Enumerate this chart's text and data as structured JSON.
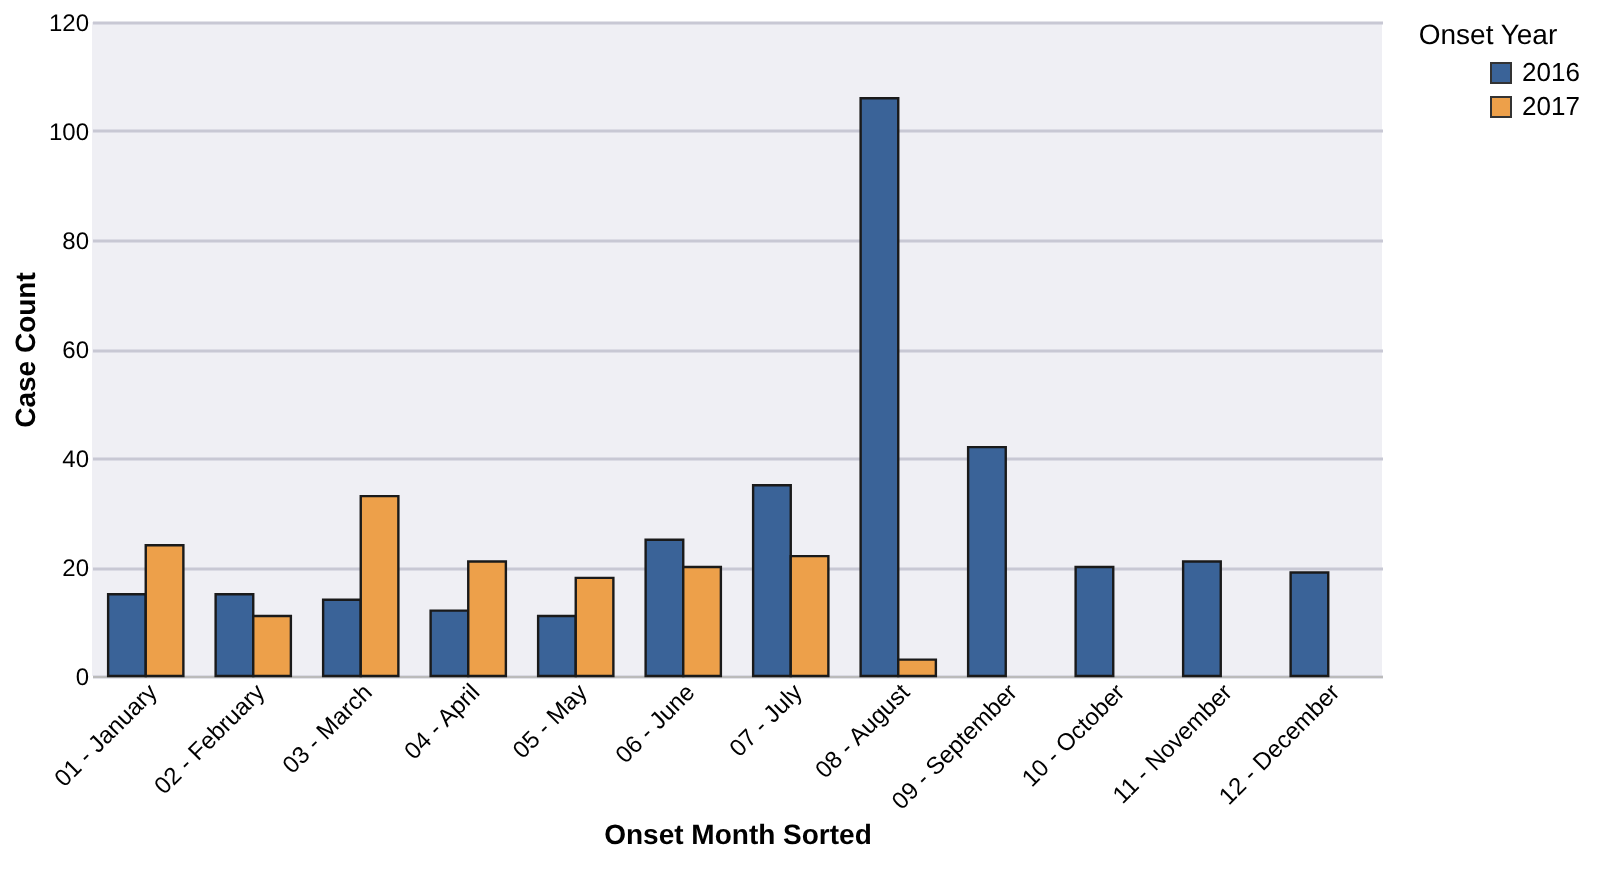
{
  "chart_data": {
    "type": "bar",
    "xlabel": "Onset Month Sorted",
    "ylabel": "Case Count",
    "legend_title": "Onset Year",
    "categories": [
      "01 - January",
      "02 - February",
      "03 - March",
      "04 - April",
      "05 - May",
      "06 - June",
      "07 - July",
      "08 - August",
      "09 - September",
      "10 - October",
      "11 - November",
      "12 - December"
    ],
    "series": [
      {
        "name": "2016",
        "color": "#3a6398",
        "values": [
          15,
          15,
          14,
          12,
          11,
          25,
          35,
          106,
          42,
          20,
          21,
          19
        ]
      },
      {
        "name": "2017",
        "color": "#eda04a",
        "values": [
          24,
          11,
          33,
          21,
          18,
          20,
          22,
          3,
          null,
          null,
          null,
          null
        ]
      }
    ],
    "ylim": [
      0,
      120
    ],
    "yticks": [
      0,
      20,
      40,
      60,
      80,
      100,
      120
    ],
    "grid": "y",
    "legend": "right"
  }
}
